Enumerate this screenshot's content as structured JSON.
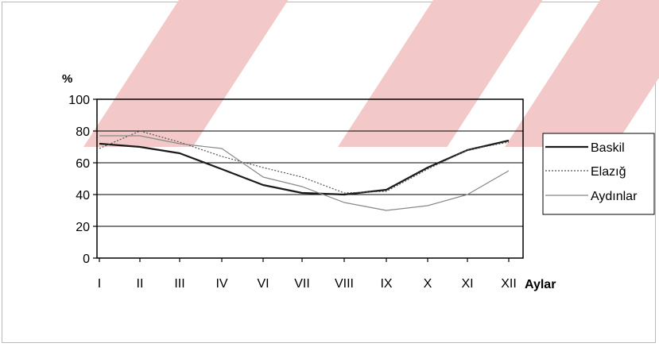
{
  "watermark_color": "#f2c8c8",
  "chart_data": {
    "type": "line",
    "title": "",
    "ylabel": "%",
    "xlabel": "Aylar",
    "categories": [
      "I",
      "II",
      "III",
      "IV",
      "VI",
      "VII",
      "VIII",
      "IX",
      "X",
      "XI",
      "XII"
    ],
    "ylim": [
      0,
      100
    ],
    "yticks": [
      0,
      20,
      40,
      60,
      80,
      100
    ],
    "grid": true,
    "legend_position": "right",
    "series": [
      {
        "name": "Baskil",
        "color": "#1a1a1a",
        "width": 2.2,
        "dash": "",
        "values": [
          72,
          70,
          66,
          56,
          46,
          41,
          40,
          43,
          57,
          68,
          74
        ]
      },
      {
        "name": "Elazığ",
        "color": "#555555",
        "width": 1.2,
        "dash": "2,2",
        "values": [
          69,
          80,
          73,
          64,
          57,
          51,
          41,
          42,
          56,
          68,
          73
        ]
      },
      {
        "name": "Aydınlar",
        "color": "#888888",
        "width": 1.2,
        "dash": "",
        "values": [
          77,
          77,
          72,
          69,
          51,
          45,
          35,
          30,
          33,
          40,
          55
        ]
      }
    ]
  }
}
